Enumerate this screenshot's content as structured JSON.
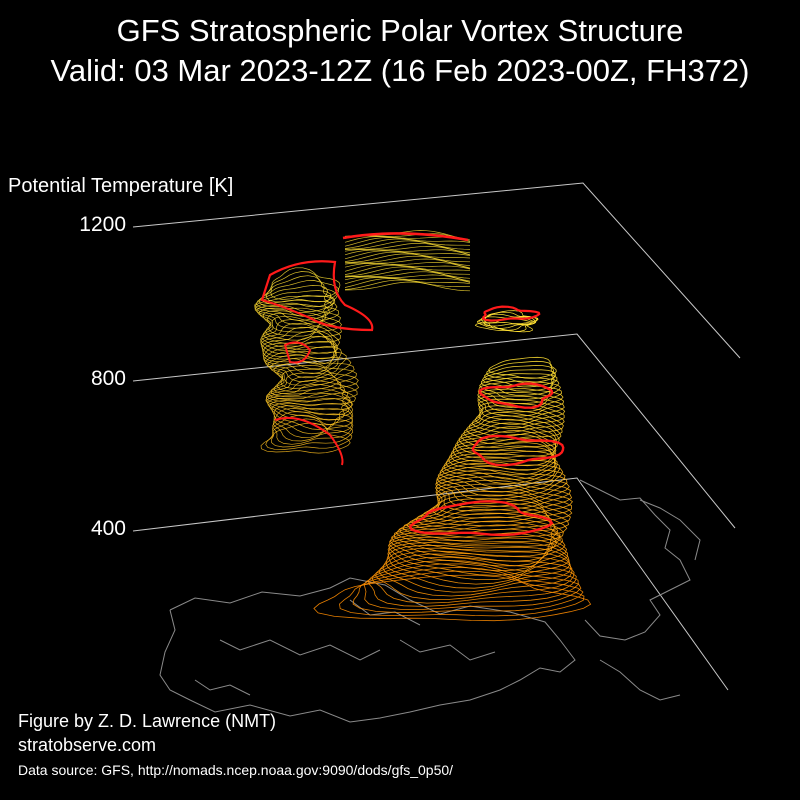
{
  "title_line1": "GFS Stratospheric Polar Vortex Structure",
  "title_line2": "Valid: 03 Mar 2023-12Z  (16 Feb 2023-00Z, FH372)",
  "credit_author": "Figure by Z. D. Lawrence (NMT)",
  "credit_site": "stratobserve.com",
  "data_source": "Data source: GFS, http://nomads.ncep.noaa.gov:9090/dods/gfs_0p50/",
  "colors": {
    "background": "#000000",
    "edge_contour": "#ff1a1a",
    "low_level": "#ff8c00",
    "high_level": "#ffe033",
    "coastline": "#8a8a8a",
    "axis_line": "#c8c8c8"
  },
  "chart_data": {
    "type": "3d-isosurface",
    "zlabel": "Potential Temperature [K]",
    "zticks": [
      1200,
      800,
      400
    ],
    "zlim": [
      400,
      1200
    ],
    "grid": true,
    "structures": [
      {
        "name": "main-vortex-column",
        "theta_range": [
          400,
          880
        ]
      },
      {
        "name": "detached-upper-lobe",
        "theta_range": [
          760,
          1200
        ]
      },
      {
        "name": "small-fragment",
        "theta_range": [
          960,
          980
        ]
      }
    ]
  }
}
